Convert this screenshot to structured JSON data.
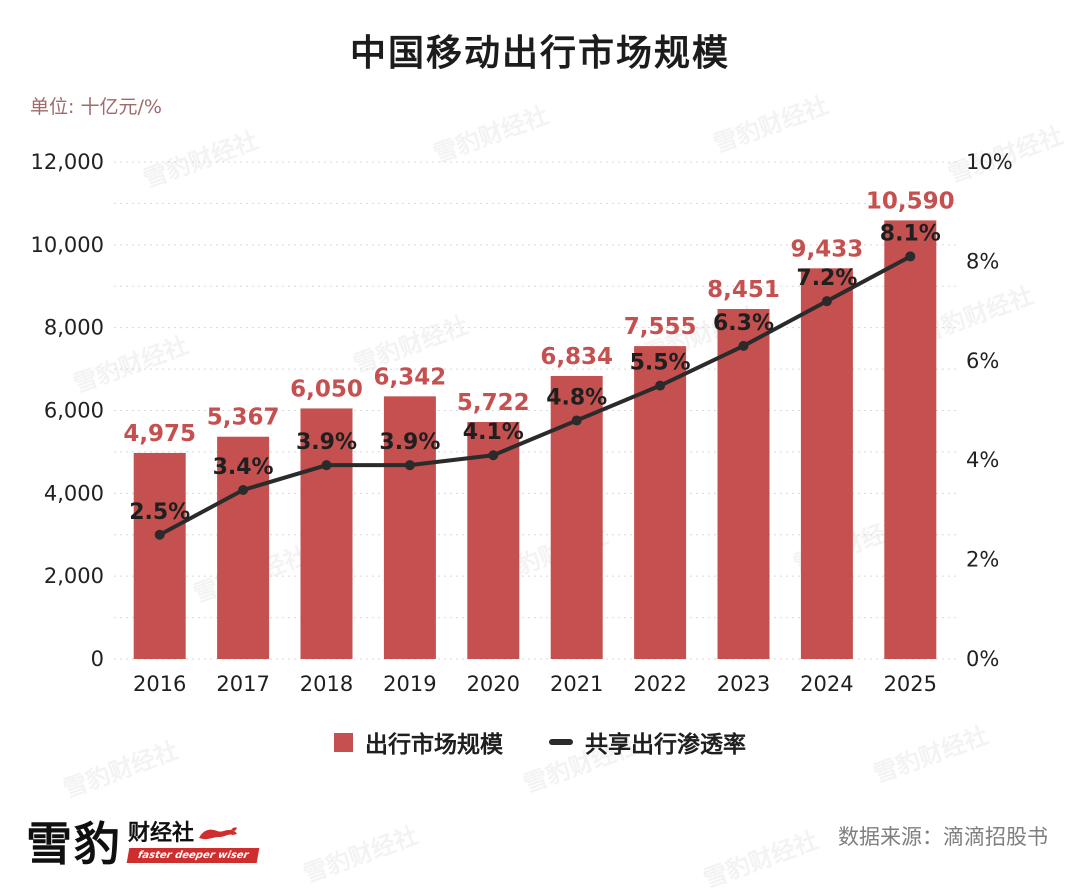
{
  "title": "中国移动出行市场规模",
  "unit_label": "单位: 十亿元/%",
  "watermark": "雪豹财经社",
  "legend": [
    {
      "label": "出行市场规模",
      "type": "bar",
      "color": "#c4514f"
    },
    {
      "label": "共享出行渗透率",
      "type": "line",
      "color": "#2b2b2b"
    }
  ],
  "footer": {
    "source": "数据来源：滴滴招股书",
    "logo_main": "雪豹",
    "logo_sub": "财经社",
    "logo_tagline": "faster deeper wiser"
  },
  "chart_data": {
    "type": "bar+line",
    "title": "中国移动出行市场规模",
    "unit": "十亿元/%",
    "categories": [
      "2016",
      "2017",
      "2018",
      "2019",
      "2020",
      "2021",
      "2022",
      "2023",
      "2024",
      "2025"
    ],
    "series": [
      {
        "name": "出行市场规模",
        "type": "bar",
        "axis": "left",
        "color": "#c4514f",
        "values": [
          4975,
          5367,
          6050,
          6342,
          5722,
          6834,
          7555,
          8451,
          9433,
          10590
        ],
        "labels": [
          "4,975",
          "5,367",
          "6,050",
          "6,342",
          "5,722",
          "6,834",
          "7,555",
          "8,451",
          "9,433",
          "10,590"
        ]
      },
      {
        "name": "共享出行渗透率",
        "type": "line",
        "axis": "right",
        "color": "#2b2b2b",
        "values": [
          2.5,
          3.4,
          3.9,
          3.9,
          4.1,
          4.8,
          5.5,
          6.3,
          7.2,
          8.1
        ],
        "labels": [
          "2.5%",
          "3.4%",
          "3.9%",
          "3.9%",
          "4.1%",
          "4.8%",
          "5.5%",
          "6.3%",
          "7.2%",
          "8.1%"
        ]
      }
    ],
    "left_axis": {
      "min": 0,
      "max": 12000,
      "step": 2000,
      "ticks": [
        "0",
        "2,000",
        "4,000",
        "6,000",
        "8,000",
        "10,000",
        "12,000"
      ]
    },
    "right_axis": {
      "min": 0,
      "max": 10,
      "step": 2,
      "ticks": [
        "0%",
        "2%",
        "4%",
        "6%",
        "8%",
        "10%"
      ]
    },
    "grid": "dotted horizontal every 1000",
    "legend_position": "bottom"
  }
}
